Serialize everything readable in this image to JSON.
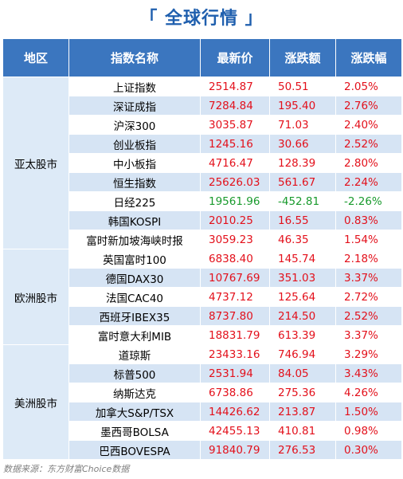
{
  "title": "「 全球行情 」",
  "headers": [
    "地区",
    "指数名称",
    "最新价",
    "涨跌额",
    "涨跌幅"
  ],
  "groups": [
    {
      "region": "亚太股市",
      "rows": [
        {
          "name": "上证指数",
          "price": "2514.87",
          "change": "50.51",
          "pct": "2.05%",
          "dir": "up"
        },
        {
          "name": "深证成指",
          "price": "7284.84",
          "change": "195.40",
          "pct": "2.76%",
          "dir": "up"
        },
        {
          "name": "沪深300",
          "price": "3035.87",
          "change": "71.03",
          "pct": "2.40%",
          "dir": "up"
        },
        {
          "name": "创业板指",
          "price": "1245.16",
          "change": "30.66",
          "pct": "2.52%",
          "dir": "up"
        },
        {
          "name": "中小板指",
          "price": "4716.47",
          "change": "128.39",
          "pct": "2.80%",
          "dir": "up"
        },
        {
          "name": "恒生指数",
          "price": "25626.03",
          "change": "561.67",
          "pct": "2.24%",
          "dir": "up"
        },
        {
          "name": "日经225",
          "price": "19561.96",
          "change": "-452.81",
          "pct": "-2.26%",
          "dir": "down"
        },
        {
          "name": "韩国KOSPI",
          "price": "2010.25",
          "change": "16.55",
          "pct": "0.83%",
          "dir": "up"
        },
        {
          "name": "富时新加坡海峡时报",
          "price": "3059.23",
          "change": "46.35",
          "pct": "1.54%",
          "dir": "up"
        }
      ]
    },
    {
      "region": "欧洲股市",
      "rows": [
        {
          "name": "英国富时100",
          "price": "6838.40",
          "change": "145.74",
          "pct": "2.18%",
          "dir": "up"
        },
        {
          "name": "德国DAX30",
          "price": "10767.69",
          "change": "351.03",
          "pct": "3.37%",
          "dir": "up"
        },
        {
          "name": "法国CAC40",
          "price": "4737.12",
          "change": "125.64",
          "pct": "2.72%",
          "dir": "up"
        },
        {
          "name": "西班牙IBEX35",
          "price": "8737.80",
          "change": "214.50",
          "pct": "2.52%",
          "dir": "up"
        },
        {
          "name": "富时意大利MIB",
          "price": "18831.79",
          "change": "613.39",
          "pct": "3.37%",
          "dir": "up"
        }
      ]
    },
    {
      "region": "美洲股市",
      "rows": [
        {
          "name": "道琼斯",
          "price": "23433.16",
          "change": "746.94",
          "pct": "3.29%",
          "dir": "up"
        },
        {
          "name": "标普500",
          "price": "2531.94",
          "change": "84.05",
          "pct": "3.43%",
          "dir": "up"
        },
        {
          "name": "纳斯达克",
          "price": "6738.86",
          "change": "275.36",
          "pct": "4.26%",
          "dir": "up"
        },
        {
          "name": "加拿大S&P/TSX",
          "price": "14426.62",
          "change": "213.87",
          "pct": "1.50%",
          "dir": "up"
        },
        {
          "name": "墨西哥BOLSA",
          "price": "42455.13",
          "change": "410.81",
          "pct": "0.98%",
          "dir": "up"
        },
        {
          "name": "巴西BOVESPA",
          "price": "91840.79",
          "change": "276.53",
          "pct": "0.30%",
          "dir": "up"
        }
      ]
    }
  ],
  "footer": "数据来源：东方财富Choice数据",
  "colors": {
    "up": "#e3101b",
    "down": "#189a2c",
    "header": "#3b76bf",
    "title": "#1f5fae"
  }
}
